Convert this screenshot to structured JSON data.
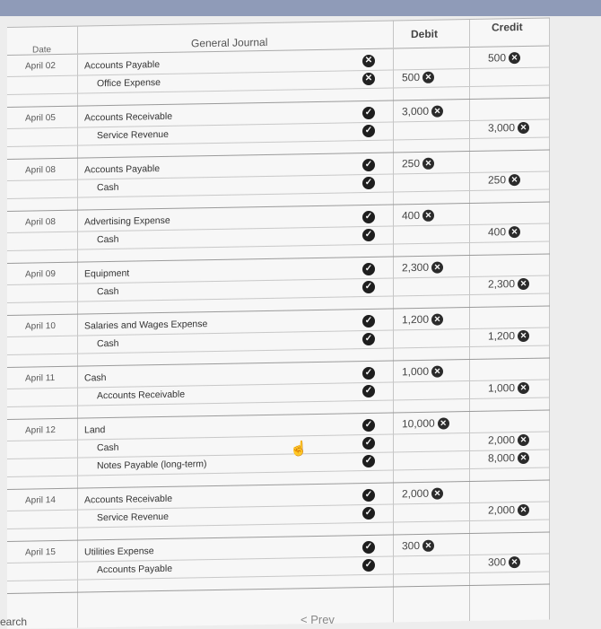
{
  "journal": {
    "columns": {
      "date": "Date",
      "title": "General Journal",
      "debit": "Debit",
      "credit": "Credit"
    },
    "entries": [
      {
        "date": "April 02",
        "lines": [
          {
            "account": "Accounts Payable",
            "mark": "wrong",
            "debit": "",
            "credit": "500"
          },
          {
            "account": "Office Expense",
            "mark": "wrong",
            "debit": "500",
            "credit": ""
          }
        ]
      },
      {
        "date": "April 05",
        "lines": [
          {
            "account": "Accounts Receivable",
            "mark": "correct",
            "debit": "3,000",
            "credit": ""
          },
          {
            "account": "Service Revenue",
            "mark": "correct",
            "debit": "",
            "credit": "3,000"
          }
        ]
      },
      {
        "date": "April 08",
        "lines": [
          {
            "account": "Accounts Payable",
            "mark": "correct",
            "debit": "250",
            "credit": ""
          },
          {
            "account": "Cash",
            "mark": "correct",
            "debit": "",
            "credit": "250"
          }
        ]
      },
      {
        "date": "April 08",
        "lines": [
          {
            "account": "Advertising Expense",
            "mark": "correct",
            "debit": "400",
            "credit": ""
          },
          {
            "account": "Cash",
            "mark": "correct",
            "debit": "",
            "credit": "400"
          }
        ]
      },
      {
        "date": "April 09",
        "lines": [
          {
            "account": "Equipment",
            "mark": "correct",
            "debit": "2,300",
            "credit": ""
          },
          {
            "account": "Cash",
            "mark": "correct",
            "debit": "",
            "credit": "2,300"
          }
        ]
      },
      {
        "date": "April 10",
        "lines": [
          {
            "account": "Salaries and Wages Expense",
            "mark": "correct",
            "debit": "1,200",
            "credit": ""
          },
          {
            "account": "Cash",
            "mark": "correct",
            "debit": "",
            "credit": "1,200"
          }
        ]
      },
      {
        "date": "April 11",
        "lines": [
          {
            "account": "Cash",
            "mark": "correct",
            "debit": "1,000",
            "credit": ""
          },
          {
            "account": "Accounts Receivable",
            "mark": "correct",
            "debit": "",
            "credit": "1,000"
          }
        ]
      },
      {
        "date": "April 12",
        "lines": [
          {
            "account": "Land",
            "mark": "correct",
            "debit": "10,000",
            "credit": ""
          },
          {
            "account": "Cash",
            "mark": "correct",
            "debit": "",
            "credit": "2,000"
          },
          {
            "account": "Notes Payable (long-term)",
            "mark": "correct",
            "debit": "",
            "credit": "8,000"
          }
        ]
      },
      {
        "date": "April 14",
        "lines": [
          {
            "account": "Accounts Receivable",
            "mark": "correct",
            "debit": "2,000",
            "credit": ""
          },
          {
            "account": "Service Revenue",
            "mark": "correct",
            "debit": "",
            "credit": "2,000"
          }
        ]
      },
      {
        "date": "April 15",
        "lines": [
          {
            "account": "Utilities Expense",
            "mark": "correct",
            "debit": "300",
            "credit": ""
          },
          {
            "account": "Accounts Payable",
            "mark": "correct",
            "debit": "",
            "credit": "300"
          }
        ]
      }
    ]
  },
  "footer": {
    "search_label": "earch",
    "prev_label": "< Prev"
  },
  "icons": {
    "correct": "check-circle-icon",
    "wrong": "x-circle-icon",
    "clear": "clear-x-icon"
  }
}
